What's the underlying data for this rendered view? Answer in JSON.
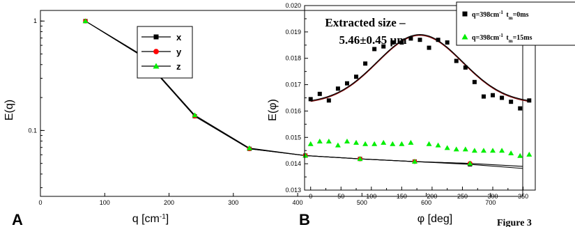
{
  "figure_caption": "Figure 3",
  "chart_data": [
    {
      "panel": "A",
      "type": "line",
      "xlabel": "q [cm",
      "xlabel_sup": "-1",
      "xlabel_end": "]",
      "ylabel": "E(q)",
      "xlim": [
        0,
        750
      ],
      "ylim": [
        0.025,
        1.25
      ],
      "y_scale": "log",
      "x_ticks": [
        0,
        100,
        200,
        300,
        400,
        500,
        600,
        700
      ],
      "y_ticks": [
        0.1,
        1
      ],
      "y_tick_labels": [
        "0.1",
        "1"
      ],
      "x": [
        70,
        155,
        240,
        325,
        412,
        497,
        582,
        668
      ],
      "series": [
        {
          "name": "x",
          "values": [
            1.0,
            0.49,
            0.135,
            0.068,
            0.059,
            0.055,
            0.052,
            0.049
          ],
          "marker": "square",
          "color": "#000000"
        },
        {
          "name": "y",
          "values": [
            1.0,
            0.49,
            0.135,
            0.068,
            0.059,
            0.055,
            0.052,
            0.05
          ],
          "marker": "circle",
          "color": "#ff0000"
        },
        {
          "name": "z",
          "values": [
            1.0,
            0.5,
            0.138,
            0.069,
            0.059,
            0.055,
            0.052,
            0.05
          ],
          "marker": "triangle",
          "color": "#00ee00"
        }
      ],
      "trailing_lines": [
        {
          "from": [
            668,
            0.049
          ],
          "to": [
            750,
            0.045
          ]
        },
        {
          "from": [
            668,
            0.05
          ],
          "to": [
            750,
            0.047
          ]
        }
      ],
      "legend_position": "top-right",
      "grid": false
    },
    {
      "panel": "B",
      "type": "scatter",
      "xlabel": "φ [deg]",
      "ylabel": "E(φ)",
      "xlim": [
        -10,
        370
      ],
      "ylim": [
        0.013,
        0.02
      ],
      "x_ticks": [
        0,
        50,
        100,
        150,
        200,
        250,
        300,
        350
      ],
      "y_ticks": [
        0.013,
        0.014,
        0.015,
        0.016,
        0.017,
        0.018,
        0.019,
        0.02
      ],
      "y_tick_labels": [
        "0.013",
        "0.014",
        "0.015",
        "0.016",
        "0.017",
        "0.018",
        "0.019",
        "0.020"
      ],
      "series": [
        {
          "legend_q": "q=398cm",
          "legend_q_sup": "-1",
          "legend_t": "t",
          "legend_t_sub": "m",
          "legend_t_val": "=0ms",
          "marker": "square",
          "color": "#000000",
          "x": [
            0,
            15,
            30,
            45,
            60,
            75,
            90,
            105,
            120,
            135,
            150,
            165,
            180,
            195,
            210,
            225,
            240,
            255,
            270,
            285,
            300,
            315,
            330,
            345,
            360
          ],
          "values": [
            0.01645,
            0.01665,
            0.0164,
            0.01685,
            0.01705,
            0.0173,
            0.0178,
            0.01835,
            0.01845,
            0.0186,
            0.0186,
            0.01875,
            0.0187,
            0.0184,
            0.0187,
            0.0186,
            0.0179,
            0.01765,
            0.0171,
            0.01655,
            0.0166,
            0.0165,
            0.01635,
            0.0161,
            0.0164
          ]
        },
        {
          "legend_q": "q=398cm",
          "legend_q_sup": "-1",
          "legend_t": "t",
          "legend_t_sub": "m",
          "legend_t_val": "=15ms",
          "marker": "triangle",
          "color": "#00ee00",
          "x": [
            0,
            15,
            30,
            45,
            60,
            75,
            90,
            105,
            120,
            135,
            150,
            165,
            195,
            210,
            225,
            240,
            255,
            270,
            285,
            300,
            315,
            330,
            345,
            360
          ],
          "values": [
            0.01475,
            0.01485,
            0.01485,
            0.0147,
            0.01485,
            0.0148,
            0.01475,
            0.01475,
            0.0148,
            0.01475,
            0.01475,
            0.0148,
            0.01475,
            0.0147,
            0.0146,
            0.01455,
            0.01455,
            0.0145,
            0.0145,
            0.0145,
            0.0145,
            0.0144,
            0.0143,
            0.01435
          ]
        }
      ],
      "fit_curve": {
        "baseline": 0.0163,
        "amplitude": 0.0026,
        "center": 180,
        "width": 70,
        "colors": [
          "#000000",
          "#7a0000"
        ]
      },
      "annotation_line1": "Extracted size –",
      "annotation_line2": "5.46±0.45 µm",
      "legend_position": "top-right (clipped at right edge)",
      "grid": false
    }
  ]
}
